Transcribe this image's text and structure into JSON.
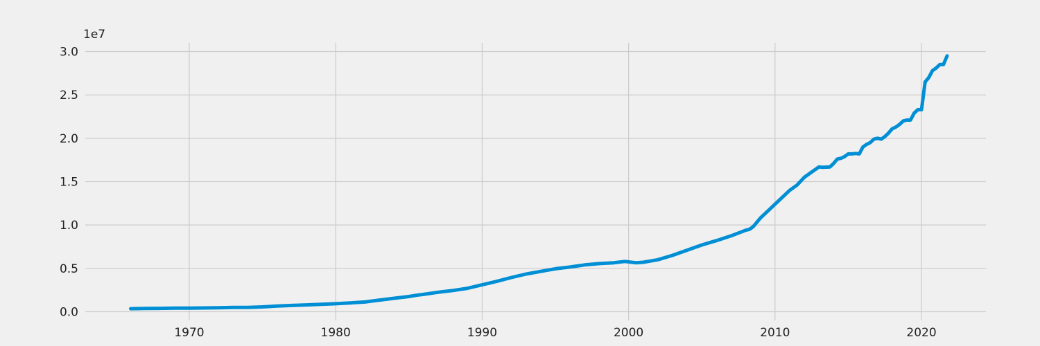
{
  "chart_data": {
    "type": "line",
    "title": "",
    "xlabel": "",
    "ylabel": "",
    "y_offset_label": "1e7",
    "xlim": [
      1962.9,
      2024.4
    ],
    "ylim": [
      -1000000,
      31000000
    ],
    "x_ticks": [
      1970,
      1980,
      1990,
      2000,
      2010,
      2020
    ],
    "x_tick_labels": [
      "1970",
      "1980",
      "1990",
      "2000",
      "2010",
      "2020"
    ],
    "y_ticks": [
      0,
      5000000,
      10000000,
      15000000,
      20000000,
      25000000,
      30000000
    ],
    "y_tick_labels": [
      "0.0",
      "0.5",
      "1.0",
      "1.5",
      "2.0",
      "2.5",
      "3.0"
    ],
    "grid": true,
    "legend": "none",
    "series": [
      {
        "color": "#008fd5",
        "x": [
          1966.0,
          1967.0,
          1968.0,
          1969.0,
          1970.0,
          1971.0,
          1972.0,
          1973.0,
          1974.0,
          1975.0,
          1976.0,
          1977.0,
          1978.0,
          1979.0,
          1980.0,
          1981.0,
          1982.0,
          1983.0,
          1984.0,
          1985.0,
          1985.5,
          1986.0,
          1987.0,
          1988.0,
          1989.0,
          1990.0,
          1991.0,
          1992.0,
          1993.0,
          1994.0,
          1995.0,
          1996.0,
          1997.0,
          1998.0,
          1999.0,
          1999.75,
          2000.5,
          2001.0,
          2002.0,
          2003.0,
          2004.0,
          2005.0,
          2006.0,
          2007.0,
          2008.0,
          2008.25,
          2008.5,
          2009.0,
          2009.5,
          2010.0,
          2010.5,
          2011.0,
          2011.5,
          2012.0,
          2012.5,
          2013.0,
          2013.25,
          2013.75,
          2014.0,
          2014.25,
          2014.5,
          2014.75,
          2015.0,
          2015.25,
          2015.5,
          2015.75,
          2016.0,
          2016.25,
          2016.5,
          2016.75,
          2017.0,
          2017.25,
          2017.5,
          2017.75,
          2018.0,
          2018.25,
          2018.5,
          2018.75,
          2019.0,
          2019.25,
          2019.5,
          2019.75,
          2020.0,
          2020.25,
          2020.5,
          2020.75,
          2021.0,
          2021.25,
          2021.5,
          2021.75
        ],
        "y": [
          350000,
          370000,
          390000,
          410000,
          420000,
          440000,
          460000,
          490000,
          500000,
          560000,
          650000,
          720000,
          790000,
          850000,
          920000,
          1020000,
          1120000,
          1350000,
          1550000,
          1750000,
          1900000,
          2000000,
          2250000,
          2450000,
          2700000,
          3100000,
          3500000,
          3950000,
          4350000,
          4650000,
          4950000,
          5150000,
          5400000,
          5550000,
          5650000,
          5800000,
          5650000,
          5700000,
          6000000,
          6500000,
          7100000,
          7700000,
          8200000,
          8750000,
          9400000,
          9500000,
          9800000,
          10800000,
          11600000,
          12400000,
          13200000,
          14000000,
          14600000,
          15500000,
          16100000,
          16700000,
          16650000,
          16700000,
          17100000,
          17600000,
          17700000,
          17900000,
          18200000,
          18200000,
          18250000,
          18200000,
          19000000,
          19300000,
          19500000,
          19900000,
          20000000,
          19900000,
          20200000,
          20600000,
          21100000,
          21300000,
          21600000,
          22000000,
          22100000,
          22100000,
          22900000,
          23300000,
          23300000,
          26500000,
          27000000,
          27800000,
          28100000,
          28500000,
          28500000,
          29500000
        ]
      }
    ]
  }
}
